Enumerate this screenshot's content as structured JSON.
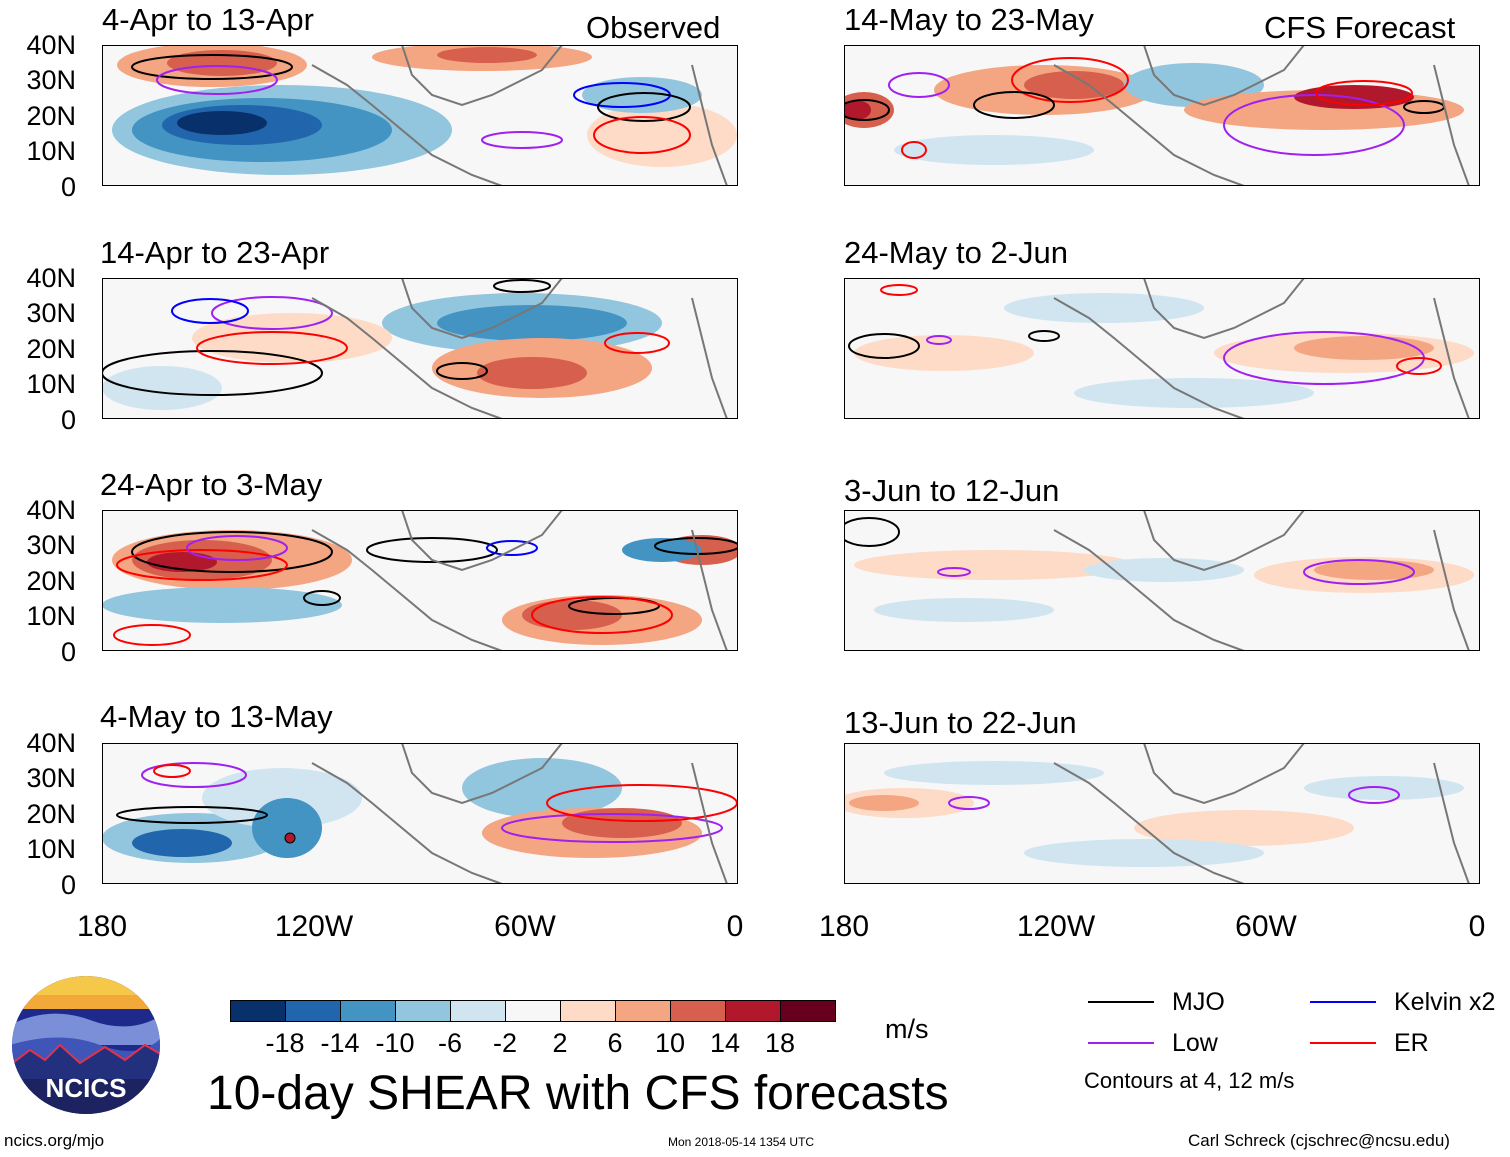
{
  "header": {
    "observed_label": "Observed",
    "forecast_label": "CFS Forecast"
  },
  "panels": {
    "observed": [
      {
        "period": "4-Apr to 13-Apr"
      },
      {
        "period": "14-Apr to 23-Apr"
      },
      {
        "period": "24-Apr to 3-May"
      },
      {
        "period": "4-May to 13-May"
      }
    ],
    "forecast": [
      {
        "period": "14-May to 23-May"
      },
      {
        "period": "24-May to 2-Jun"
      },
      {
        "period": "3-Jun to 12-Jun"
      },
      {
        "period": "13-Jun to 22-Jun"
      }
    ]
  },
  "axes": {
    "lat_ticks": [
      "40N",
      "30N",
      "20N",
      "10N",
      "0"
    ],
    "lon_ticks": [
      "180",
      "120W",
      "60W",
      "0"
    ]
  },
  "colorbar": {
    "colors": [
      "#08306b",
      "#2166ac",
      "#4393c3",
      "#92c5de",
      "#d1e5f0",
      "#f7f7f7",
      "#fddbc7",
      "#f4a582",
      "#d6604d",
      "#b2182b",
      "#67001f"
    ],
    "labels": [
      "-18",
      "-14",
      "-10",
      "-6",
      "-2",
      "2",
      "6",
      "10",
      "14",
      "18"
    ],
    "units": "m/s"
  },
  "title": "10-day SHEAR with CFS forecasts",
  "legend": {
    "items": [
      {
        "name": "MJO",
        "color": "#000000"
      },
      {
        "name": "Kelvin x2",
        "color": "#0000ff"
      },
      {
        "name": "Low",
        "color": "#a020f0"
      },
      {
        "name": "ER",
        "color": "#ff0000"
      }
    ],
    "note": "Contours at 4, 12 m/s"
  },
  "logo": {
    "text": "NCICS"
  },
  "footer": {
    "url": "ncics.org/mjo",
    "timestamp": "Mon 2018-05-14 1354 UTC",
    "credit": "Carl Schreck (cjschrec@ncsu.edu)"
  }
}
